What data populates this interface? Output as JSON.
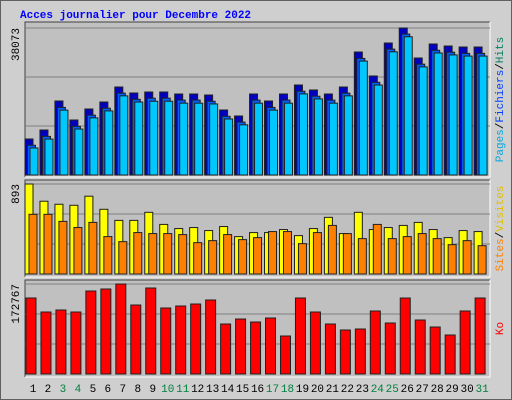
{
  "chart_data": [
    {
      "type": "bar",
      "title": "Acces journalier pour Decembre 2022",
      "ylim": [
        0,
        38073
      ],
      "yticks": [
        38073
      ],
      "legend_separator": "/",
      "series": [
        {
          "name": "Hits",
          "color": "#0000c0",
          "label_color": "#008060",
          "values": [
            9324,
            11655,
            19166,
            14245,
            17094,
            18907,
            22792,
            21238,
            21497,
            21497,
            20979,
            20979,
            20720,
            16835,
            15281,
            20979,
            19166,
            20979,
            23310,
            22015,
            20979,
            22792,
            31857,
            25641,
            34188,
            38073,
            30303,
            33929,
            33411,
            33152,
            33152
          ]
        },
        {
          "name": "Fichiers",
          "color": "#0060ff",
          "label_color": "#0040ff",
          "values": [
            7700,
            10000,
            17500,
            12600,
            15500,
            17300,
            21200,
            19600,
            19900,
            19900,
            19400,
            19400,
            19100,
            15200,
            13700,
            19400,
            17500,
            19400,
            21700,
            20400,
            19400,
            21200,
            30200,
            24000,
            32600,
            36500,
            28700,
            32300,
            31800,
            31500,
            31500
          ]
        },
        {
          "name": "Pages",
          "color": "#00c8ff",
          "label_color": "#00a8e0",
          "values": [
            7000,
            9300,
            16800,
            11900,
            14800,
            16600,
            20500,
            18900,
            19100,
            19100,
            18600,
            18600,
            18400,
            14500,
            13000,
            18600,
            16800,
            18600,
            21000,
            19700,
            18600,
            20500,
            29500,
            23300,
            31900,
            35800,
            28000,
            31600,
            31100,
            30800,
            30800
          ]
        }
      ]
    },
    {
      "type": "bar",
      "ylim": [
        0,
        893
      ],
      "yticks": [
        893
      ],
      "legend_separator": "/",
      "series": [
        {
          "name": "Visites",
          "color": "#ffff00",
          "label_color": "#e0c000",
          "values": [
            893,
            722,
            692,
            682,
            772,
            642,
            532,
            532,
            612,
            492,
            451,
            461,
            431,
            471,
            371,
            411,
            411,
            441,
            381,
            451,
            562,
            401,
            612,
            441,
            461,
            482,
            512,
            441,
            361,
            431,
            421
          ]
        },
        {
          "name": "Sites",
          "color": "#ff8000",
          "label_color": "#ff8000",
          "values": [
            592,
            592,
            522,
            461,
            512,
            371,
            321,
            411,
            401,
            401,
            391,
            311,
            331,
            391,
            341,
            361,
            421,
            421,
            301,
            411,
            482,
            401,
            351,
            492,
            351,
            371,
            401,
            351,
            291,
            331,
            281
          ]
        }
      ]
    },
    {
      "type": "bar",
      "ylim": [
        0,
        172767
      ],
      "yticks": [
        172767
      ],
      "categories": [
        "1",
        "2",
        "3",
        "4",
        "5",
        "6",
        "7",
        "8",
        "9",
        "10",
        "11",
        "12",
        "13",
        "14",
        "15",
        "16",
        "17",
        "18",
        "19",
        "20",
        "21",
        "22",
        "23",
        "24",
        "25",
        "26",
        "27",
        "28",
        "29",
        "30",
        "31"
      ],
      "category_label_colors": [
        "#000000",
        "#000000",
        "#008040",
        "#008040",
        "#000000",
        "#000000",
        "#000000",
        "#000000",
        "#000000",
        "#008040",
        "#008040",
        "#000000",
        "#000000",
        "#000000",
        "#000000",
        "#000000",
        "#008040",
        "#008040",
        "#000000",
        "#000000",
        "#000000",
        "#000000",
        "#000000",
        "#008040",
        "#008040",
        "#000000",
        "#000000",
        "#000000",
        "#000000",
        "#000000",
        "#008040"
      ],
      "series": [
        {
          "name": "Ko",
          "color": "#ff0000",
          "label_color": "#ff0000",
          "values": [
            145890,
            119015,
            122855,
            119015,
            159328,
            163167,
            172767,
            132452,
            165086,
            126694,
            130533,
            134372,
            142051,
            95980,
            105578,
            99819,
            107498,
            72945,
            145890,
            119015,
            95980,
            84462,
            86382,
            120935,
            97900,
            145890,
            103659,
            90221,
            74864,
            120935,
            145890
          ]
        }
      ]
    }
  ]
}
